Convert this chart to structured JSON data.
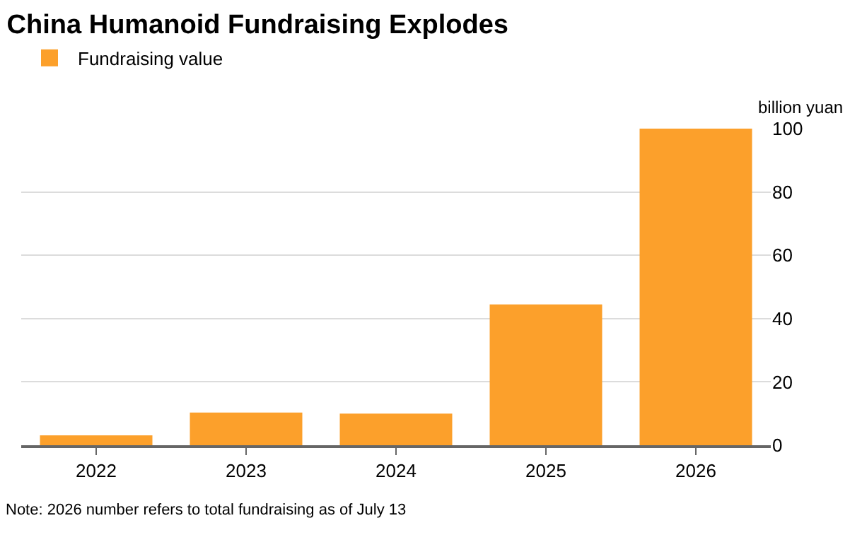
{
  "chart_data": {
    "type": "bar",
    "title": "China Humanoid Fundraising Explodes",
    "categories": [
      "2022",
      "2023",
      "2024",
      "2025",
      "2026"
    ],
    "series": [
      {
        "name": "Fundraising value",
        "color": "#fca02b",
        "values": [
          3.1,
          10.3,
          10,
          44.5,
          100
        ]
      }
    ],
    "ylabel": "billion yuan",
    "ylim": [
      0,
      100
    ],
    "yticks": [
      0,
      20,
      40,
      60,
      80,
      100
    ],
    "grid": "y",
    "legend": "top left",
    "annotations": [
      "Note: 2026 number refers to total fundraising as of July 13"
    ]
  }
}
